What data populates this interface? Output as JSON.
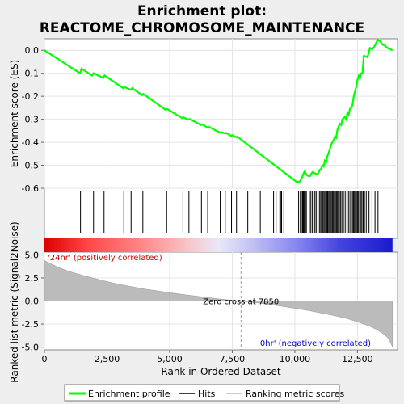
{
  "title_line1": "Enrichment plot:",
  "title_line2": "REACTOME_CHROMOSOME_MAINTENANCE",
  "chart_data": {
    "type": "line",
    "x_axis": {
      "label": "Rank in Ordered Dataset",
      "range": [
        0,
        14100
      ],
      "ticks": [
        0,
        2500,
        5000,
        7500,
        10000,
        12500
      ],
      "tick_labels": [
        "0",
        "2,500",
        "5,000",
        "7,500",
        "10,000",
        "12,500"
      ]
    },
    "es_axis": {
      "label": "Enrichment score (ES)",
      "range": [
        -0.6,
        0.05
      ],
      "ticks": [
        0.0,
        -0.1,
        -0.2,
        -0.3,
        -0.4,
        -0.5,
        -0.6
      ],
      "tick_labels": [
        "0.0",
        "-0.1",
        "-0.2",
        "-0.3",
        "-0.4",
        "-0.5",
        "-0.6"
      ]
    },
    "metric_axis": {
      "label": "Ranked list metric (Signal2Noise)",
      "range": [
        -5.3,
        5.3
      ],
      "ticks": [
        5.0,
        2.5,
        0.0,
        -2.5,
        -5.0
      ],
      "tick_labels": [
        "5.0",
        "2.5",
        "0.0",
        "-2.5",
        "-5.0"
      ]
    },
    "enrichment_profile": {
      "x": [
        0,
        1420,
        1480,
        1900,
        1960,
        2350,
        2400,
        3150,
        3200,
        3450,
        3500,
        3900,
        3950,
        4850,
        4900,
        5500,
        5550,
        5750,
        5800,
        6250,
        6300,
        6500,
        6550,
        7000,
        7050,
        7200,
        7250,
        7450,
        7500,
        7650,
        7700,
        9800,
        10100,
        10200,
        10250,
        10300,
        10350,
        10400,
        10450,
        10500,
        10600,
        10700,
        10800,
        10900,
        11000,
        11050,
        11100,
        11150,
        11200,
        11250,
        11300,
        11350,
        11400,
        11450,
        11500,
        11550,
        11600,
        11650,
        11700,
        11750,
        11800,
        11850,
        11900,
        12000,
        12050,
        12100,
        12150,
        12200,
        12250,
        12300,
        12350,
        12400,
        12450,
        12500,
        12550,
        12600,
        12650,
        12700,
        12750,
        12800,
        12900,
        13000,
        13100,
        13200,
        13300,
        13400,
        13500,
        13600,
        13700,
        13800,
        13900
      ],
      "y": [
        0.0,
        -0.1,
        -0.08,
        -0.11,
        -0.1,
        -0.12,
        -0.11,
        -0.165,
        -0.16,
        -0.172,
        -0.165,
        -0.195,
        -0.19,
        -0.26,
        -0.255,
        -0.295,
        -0.292,
        -0.302,
        -0.299,
        -0.325,
        -0.322,
        -0.335,
        -0.332,
        -0.358,
        -0.355,
        -0.362,
        -0.359,
        -0.372,
        -0.369,
        -0.378,
        -0.375,
        -0.55,
        -0.575,
        -0.57,
        -0.56,
        -0.55,
        -0.535,
        -0.525,
        -0.54,
        -0.545,
        -0.548,
        -0.53,
        -0.535,
        -0.54,
        -0.52,
        -0.515,
        -0.5,
        -0.505,
        -0.48,
        -0.485,
        -0.46,
        -0.445,
        -0.43,
        -0.41,
        -0.4,
        -0.39,
        -0.375,
        -0.38,
        -0.345,
        -0.33,
        -0.32,
        -0.325,
        -0.3,
        -0.29,
        -0.3,
        -0.27,
        -0.28,
        -0.255,
        -0.25,
        -0.24,
        -0.2,
        -0.18,
        -0.16,
        -0.13,
        -0.11,
        -0.12,
        -0.1,
        -0.1,
        -0.025,
        -0.025,
        -0.03,
        0.01,
        0.005,
        0.02,
        0.045,
        0.04,
        0.025,
        0.02,
        0.01,
        0.005,
        0.0
      ]
    },
    "hits": [
      1440,
      1960,
      2380,
      3170,
      3460,
      3930,
      4880,
      5530,
      5770,
      6270,
      6520,
      7020,
      7220,
      7470,
      7670,
      8120,
      8620,
      9150,
      9250,
      9400,
      9430,
      9470,
      9560,
      10150,
      10220,
      10260,
      10310,
      10340,
      10370,
      10420,
      10460,
      10580,
      10640,
      10700,
      10760,
      10800,
      10850,
      10920,
      10980,
      11030,
      11070,
      11120,
      11160,
      11200,
      11240,
      11280,
      11310,
      11350,
      11390,
      11420,
      11460,
      11500,
      11540,
      11580,
      11620,
      11660,
      11700,
      11740,
      11780,
      11830,
      11880,
      11940,
      12010,
      12080,
      12140,
      12200,
      12250,
      12300,
      12340,
      12380,
      12420,
      12460,
      12500,
      12540,
      12590,
      12640,
      12680,
      12730,
      12780,
      12850,
      12960,
      13080,
      13200,
      13320
    ],
    "metric_curve": {
      "x": [
        0,
        200,
        600,
        1000,
        1500,
        2000,
        2500,
        3000,
        3500,
        4000,
        4500,
        5000,
        5500,
        6000,
        6500,
        7000,
        7500,
        7850,
        8500,
        9000,
        9500,
        10000,
        10500,
        11000,
        11500,
        12000,
        12500,
        13000,
        13300,
        13500,
        13700,
        13800,
        13900
      ],
      "y": [
        4.4,
        4.1,
        3.6,
        3.2,
        2.8,
        2.45,
        2.1,
        1.8,
        1.55,
        1.3,
        1.1,
        0.9,
        0.72,
        0.55,
        0.38,
        0.22,
        0.08,
        0.0,
        -0.2,
        -0.38,
        -0.58,
        -0.8,
        -1.02,
        -1.28,
        -1.55,
        -1.85,
        -2.25,
        -2.75,
        -3.15,
        -3.5,
        -3.95,
        -4.4,
        -5.0
      ]
    },
    "zero_cross": {
      "rank": 7850,
      "label": "Zero cross at 7850"
    },
    "positive_label": "'24hr' (positively correlated)",
    "negative_label": "'0hr' (negatively correlated)",
    "legend": {
      "placement": "bottom",
      "entries": [
        {
          "label": "Enrichment profile",
          "color": "#00ff00"
        },
        {
          "label": "Hits",
          "color": "#000000"
        },
        {
          "label": "Ranking metric scores",
          "color": "#bbbbbb"
        }
      ]
    }
  },
  "colors": {
    "profile": "#00ff00",
    "metric_fill": "#bbbbbb",
    "positive_text": "#cc0000",
    "negative_text": "#0000cc"
  }
}
